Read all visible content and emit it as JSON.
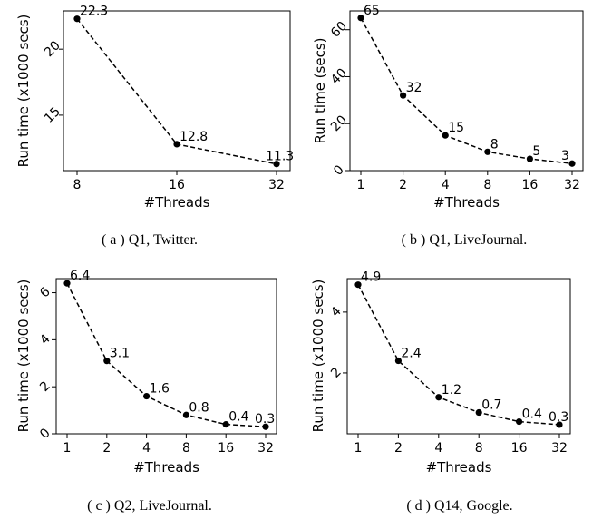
{
  "chart_data": [
    {
      "type": "line",
      "caption": "( a ) Q1, Twitter.",
      "xlabel": "#Threads",
      "ylabel": "Run time (x1000 secs)",
      "x_scale": "log2",
      "x_ticks": [
        8,
        16,
        32
      ],
      "x_tick_labels": [
        "8",
        "16",
        "32"
      ],
      "y_ticks": [
        15,
        20
      ],
      "y_tick_labels": [
        "15",
        "20"
      ],
      "xlim": [
        8,
        32
      ],
      "ylim": [
        10.8,
        22.9
      ],
      "series": [
        {
          "x": [
            8,
            16,
            32
          ],
          "values": [
            22.3,
            12.8,
            11.3
          ],
          "labels": [
            "22.3",
            "12.8",
            "11.3"
          ]
        }
      ]
    },
    {
      "type": "line",
      "caption": "( b ) Q1, LiveJournal.",
      "xlabel": "#Threads",
      "ylabel": "Run time (secs)",
      "x_scale": "log2",
      "x_ticks": [
        1,
        2,
        4,
        8,
        16,
        32
      ],
      "x_tick_labels": [
        "1",
        "2",
        "4",
        "8",
        "16",
        "32"
      ],
      "y_ticks": [
        0,
        20,
        40,
        60
      ],
      "y_tick_labels": [
        "0",
        "20",
        "40",
        "60"
      ],
      "xlim": [
        1,
        32
      ],
      "ylim": [
        0,
        68
      ],
      "series": [
        {
          "x": [
            1,
            2,
            4,
            8,
            16,
            32
          ],
          "values": [
            65,
            32,
            15,
            8,
            5,
            3
          ],
          "labels": [
            "65",
            "32",
            "15",
            "8",
            "5",
            "3"
          ]
        }
      ]
    },
    {
      "type": "line",
      "caption": "( c ) Q2, LiveJournal.",
      "xlabel": "#Threads",
      "ylabel": "Run time (x1000 secs)",
      "x_scale": "log2",
      "x_ticks": [
        1,
        2,
        4,
        8,
        16,
        32
      ],
      "x_tick_labels": [
        "1",
        "2",
        "4",
        "8",
        "16",
        "32"
      ],
      "y_ticks": [
        0,
        2,
        4,
        6
      ],
      "y_tick_labels": [
        "0",
        "2",
        "4",
        "6"
      ],
      "xlim": [
        1,
        32
      ],
      "ylim": [
        0,
        6.6
      ],
      "series": [
        {
          "x": [
            1,
            2,
            4,
            8,
            16,
            32
          ],
          "values": [
            6.4,
            3.1,
            1.6,
            0.8,
            0.4,
            0.3
          ],
          "labels": [
            "6.4",
            "3.1",
            "1.6",
            "0.8",
            "0.4",
            "0.3"
          ]
        }
      ]
    },
    {
      "type": "line",
      "caption": "( d ) Q14, Google.",
      "xlabel": "#Threads",
      "ylabel": "Run time (x1000 secs)",
      "x_scale": "log2",
      "x_ticks": [
        1,
        2,
        4,
        8,
        16,
        32
      ],
      "x_tick_labels": [
        "1",
        "2",
        "4",
        "8",
        "16",
        "32"
      ],
      "y_ticks": [
        2,
        4
      ],
      "y_tick_labels": [
        "2",
        "4"
      ],
      "xlim": [
        1,
        32
      ],
      "ylim": [
        0,
        5.1
      ],
      "series": [
        {
          "x": [
            1,
            2,
            4,
            8,
            16,
            32
          ],
          "values": [
            4.9,
            2.4,
            1.2,
            0.7,
            0.4,
            0.3
          ],
          "labels": [
            "4.9",
            "2.4",
            "1.2",
            "0.7",
            "0.4",
            "0.3"
          ]
        }
      ]
    }
  ]
}
